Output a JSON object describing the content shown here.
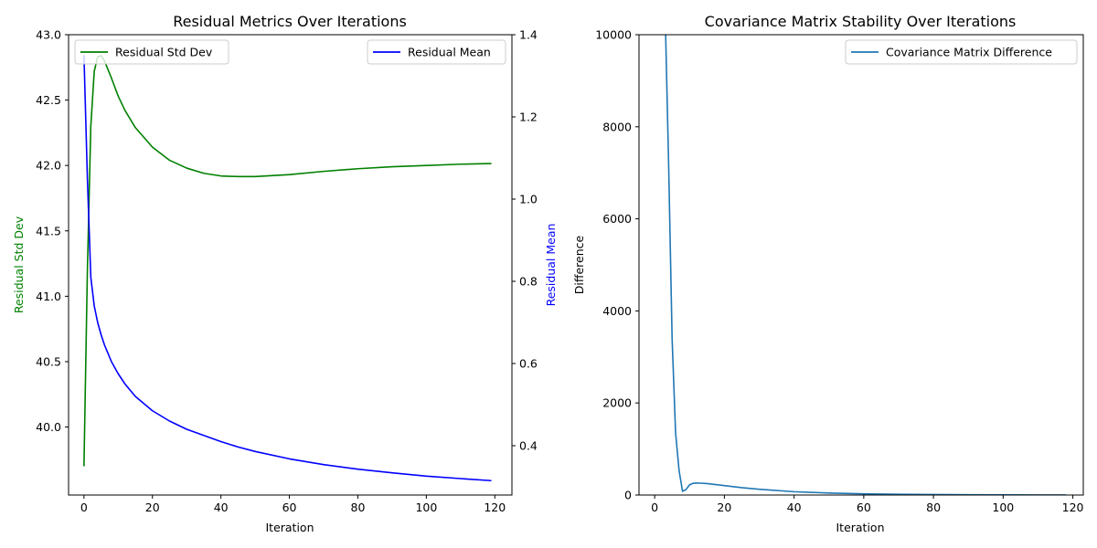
{
  "chart_data": [
    {
      "type": "line",
      "title": "Residual Metrics Over Iterations",
      "xlabel": "Iteration",
      "ylabel": "Residual Std Dev",
      "y2label": "Residual Mean",
      "xlim": [
        -4.5,
        125
      ],
      "ylim": [
        39.48,
        43.0
      ],
      "y2lim": [
        0.28,
        1.4
      ],
      "xticks": [
        0,
        20,
        40,
        60,
        80,
        100,
        120
      ],
      "yticks": [
        40.0,
        40.5,
        41.0,
        41.5,
        42.0,
        42.5,
        43.0
      ],
      "y2ticks": [
        0.4,
        0.6,
        0.8,
        1.0,
        1.2,
        1.4
      ],
      "legend_left": "upper left",
      "legend_right": "upper right",
      "series": [
        {
          "name": "Residual Std Dev",
          "axis": "left",
          "color": "#008000",
          "x": [
            0,
            1,
            2,
            3,
            4,
            5,
            6,
            8,
            10,
            12,
            15,
            20,
            25,
            30,
            35,
            40,
            45,
            50,
            60,
            70,
            80,
            90,
            100,
            110,
            119
          ],
          "y": [
            39.7,
            41.2,
            42.3,
            42.72,
            42.83,
            42.84,
            42.8,
            42.67,
            42.53,
            42.42,
            42.29,
            42.14,
            42.04,
            41.98,
            41.94,
            41.92,
            41.915,
            41.915,
            41.93,
            41.955,
            41.975,
            41.99,
            42.0,
            42.01,
            42.015
          ]
        },
        {
          "name": "Residual Mean",
          "axis": "right",
          "color": "#0000ff",
          "x": [
            0,
            1,
            2,
            3,
            4,
            5,
            6,
            8,
            10,
            12,
            15,
            20,
            25,
            30,
            35,
            40,
            45,
            50,
            60,
            70,
            80,
            90,
            100,
            110,
            119
          ],
          "y": [
            1.35,
            1.05,
            0.81,
            0.74,
            0.7,
            0.67,
            0.645,
            0.605,
            0.575,
            0.55,
            0.52,
            0.485,
            0.46,
            0.44,
            0.425,
            0.41,
            0.397,
            0.386,
            0.368,
            0.354,
            0.343,
            0.334,
            0.326,
            0.32,
            0.315
          ]
        }
      ]
    },
    {
      "type": "line",
      "title": "Covariance Matrix Stability Over Iterations",
      "xlabel": "Iteration",
      "ylabel": "Difference",
      "xlim": [
        -4.5,
        123
      ],
      "ylim": [
        0,
        10000
      ],
      "xticks": [
        0,
        20,
        40,
        60,
        80,
        100,
        120
      ],
      "yticks": [
        0,
        2000,
        4000,
        6000,
        8000,
        10000
      ],
      "legend": "upper right",
      "series": [
        {
          "name": "Covariance Matrix Difference",
          "color": "#1f77b4",
          "x": [
            3,
            4,
            5,
            6,
            7,
            8,
            9,
            10,
            11,
            12,
            13,
            15,
            20,
            25,
            30,
            40,
            50,
            60,
            70,
            80,
            90,
            100,
            110,
            118
          ],
          "y": [
            10500,
            7200,
            3400,
            1350,
            530,
            80,
            120,
            220,
            255,
            260,
            258,
            250,
            205,
            160,
            125,
            72,
            44,
            27,
            17,
            11,
            7,
            4,
            2,
            1
          ]
        }
      ]
    }
  ]
}
